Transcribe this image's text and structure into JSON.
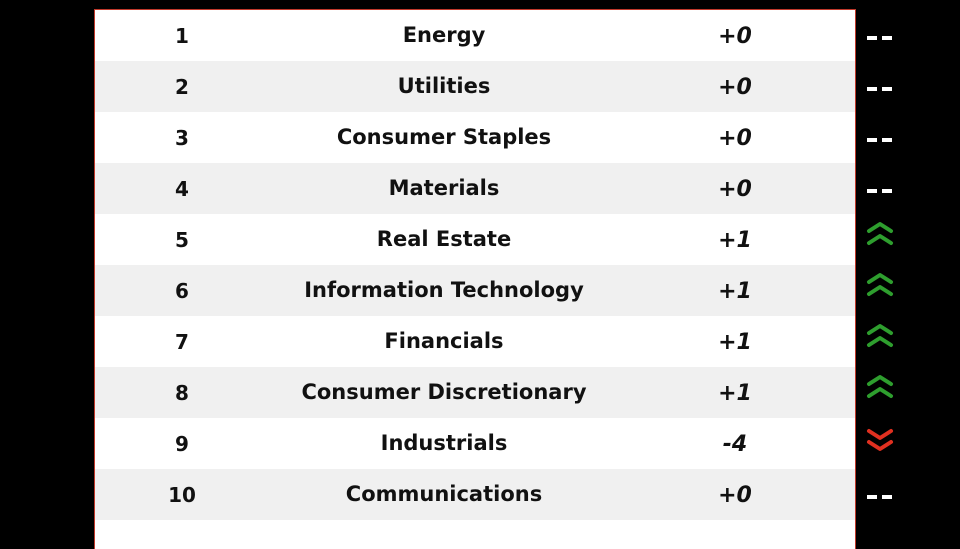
{
  "table": {
    "rows": [
      [
        "1",
        "Energy",
        "+0"
      ],
      [
        "2",
        "Utilities",
        "+0"
      ],
      [
        "3",
        "Consumer Staples",
        "+0"
      ],
      [
        "4",
        "Materials",
        "+0"
      ],
      [
        "5",
        "Real Estate",
        "+1"
      ],
      [
        "6",
        "Information Technology",
        "+1"
      ],
      [
        "7",
        "Financials",
        "+1"
      ],
      [
        "8",
        "Consumer Discretionary",
        "+1"
      ],
      [
        "9",
        "Industrials",
        "-4"
      ],
      [
        "10",
        "Communications",
        "+0"
      ]
    ]
  }
}
